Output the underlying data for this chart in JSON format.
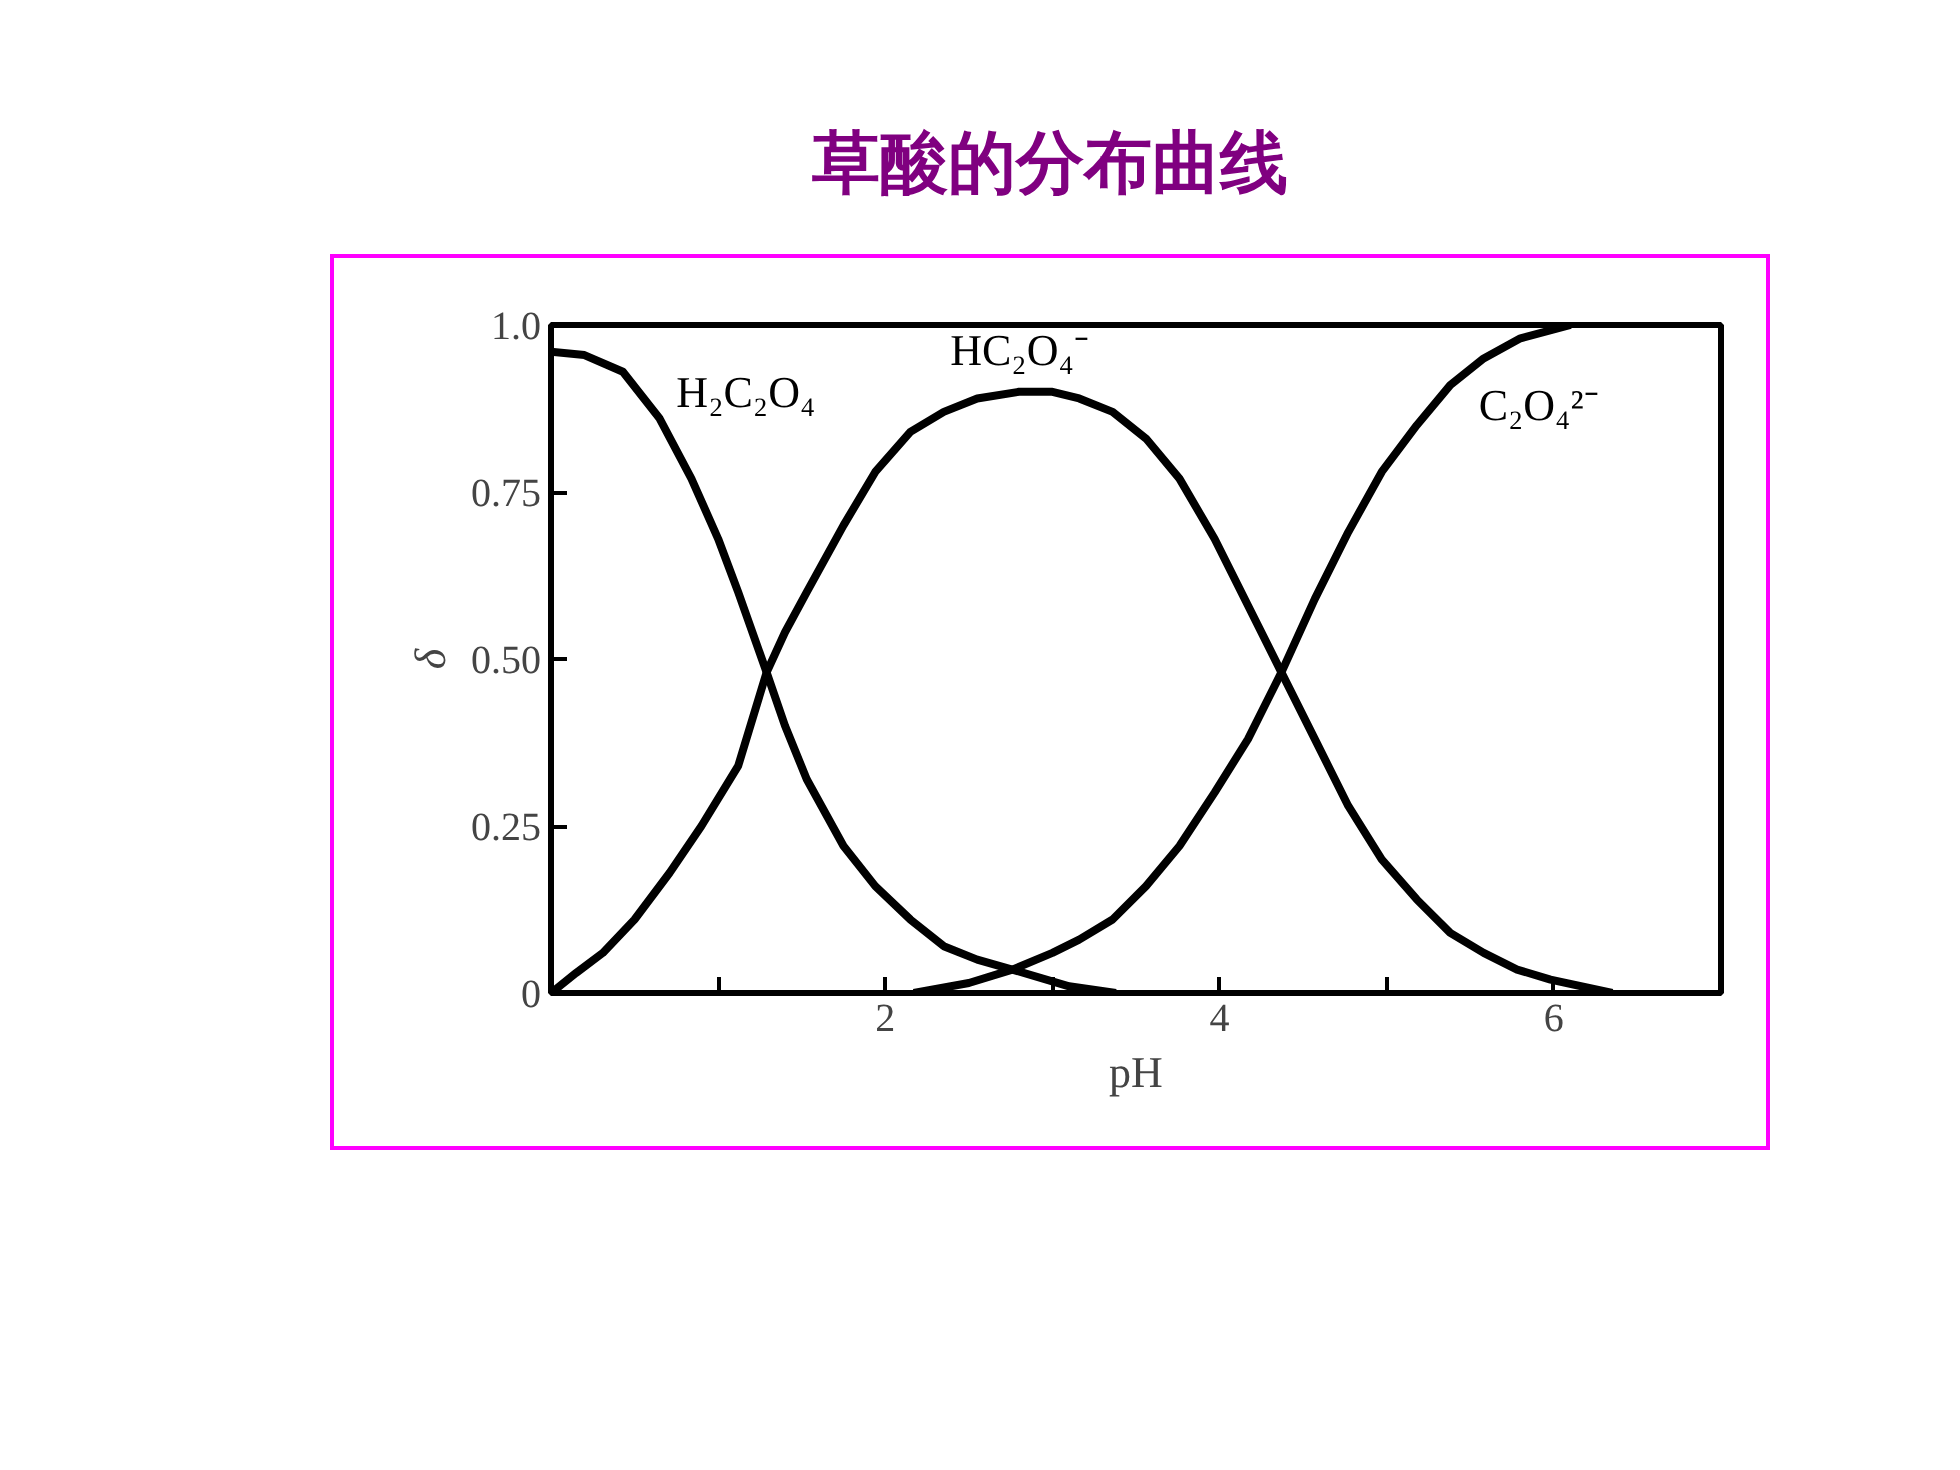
{
  "chart_data": {
    "type": "line",
    "title": "草酸的分布曲线",
    "xlabel": "pH",
    "ylabel": "δ",
    "xlim": [
      0,
      7
    ],
    "xticks": [
      {
        "value": 1,
        "label": null
      },
      2,
      {
        "value": 3,
        "label": null
      },
      4,
      {
        "value": 5,
        "label": null
      },
      6
    ],
    "ylim": [
      0,
      1
    ],
    "yticks": [
      0,
      0.25,
      {
        "value": 0.5,
        "label": "0.50"
      },
      0.75,
      {
        "value": 1,
        "label": "1.0"
      }
    ],
    "grid": false,
    "legend": false,
    "marker": "none",
    "line_style": "solid",
    "series": [
      {
        "name": "H₂C₂O₄",
        "color": "#000000",
        "x": [
          0,
          0.2,
          0.43,
          0.65,
          0.84,
          1.0,
          1.12,
          1.29,
          1.4,
          1.53,
          1.75,
          1.94,
          2.15,
          2.35,
          2.55,
          2.76,
          3.1,
          3.38
        ],
        "values": [
          0.96,
          0.955,
          0.93,
          0.86,
          0.77,
          0.68,
          0.6,
          0.48,
          0.4,
          0.32,
          0.22,
          0.16,
          0.11,
          0.07,
          0.05,
          0.035,
          0.01,
          0
        ]
      },
      {
        "name": "HC₂O₄⁻",
        "color": "#000000",
        "x": [
          0,
          0.15,
          0.31,
          0.5,
          0.71,
          0.9,
          1.12,
          1.29,
          1.4,
          1.53,
          1.75,
          1.94,
          2.15,
          2.35,
          2.55,
          2.8,
          3.0,
          3.16,
          3.36,
          3.56,
          3.76,
          3.97,
          4.17,
          4.37,
          4.57,
          4.77,
          4.97,
          5.18,
          5.38,
          5.58,
          5.78,
          5.98,
          6.35
        ],
        "values": [
          0,
          0.03,
          0.06,
          0.11,
          0.18,
          0.25,
          0.34,
          0.48,
          0.54,
          0.6,
          0.7,
          0.78,
          0.84,
          0.87,
          0.89,
          0.9,
          0.9,
          0.89,
          0.87,
          0.83,
          0.77,
          0.68,
          0.58,
          0.48,
          0.38,
          0.28,
          0.2,
          0.14,
          0.09,
          0.06,
          0.035,
          0.02,
          0
        ]
      },
      {
        "name": "C₂O₄²⁻",
        "color": "#000000",
        "x": [
          2.17,
          2.5,
          2.76,
          3.0,
          3.16,
          3.36,
          3.56,
          3.76,
          3.97,
          4.17,
          4.37,
          4.57,
          4.77,
          4.97,
          5.18,
          5.38,
          5.58,
          5.8,
          6.1
        ],
        "values": [
          0,
          0.015,
          0.035,
          0.06,
          0.08,
          0.11,
          0.16,
          0.22,
          0.3,
          0.38,
          0.48,
          0.59,
          0.69,
          0.78,
          0.85,
          0.91,
          0.95,
          0.98,
          1.0
        ]
      }
    ]
  }
}
